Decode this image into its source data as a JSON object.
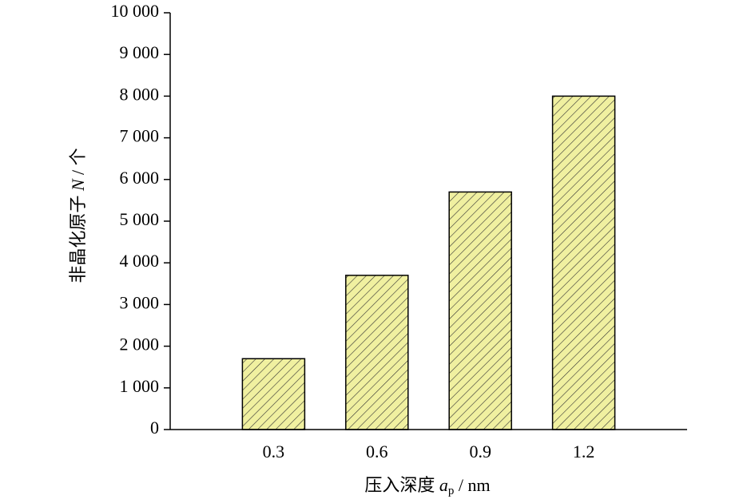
{
  "chart_data": {
    "type": "bar",
    "categories": [
      "0.3",
      "0.6",
      "0.9",
      "1.2"
    ],
    "values": [
      1700,
      3700,
      5700,
      8000
    ],
    "color": "#f0f0a0",
    "ylim": [
      0,
      10000
    ],
    "yticks": [
      0,
      {
        "value": 1000,
        "label": "1 000"
      },
      {
        "value": 2000,
        "label": "2 000"
      },
      {
        "value": 3000,
        "label": "3 000"
      },
      {
        "value": 4000,
        "label": "4 000"
      },
      {
        "value": 5000,
        "label": "5 000"
      },
      {
        "value": 6000,
        "label": "6 000"
      },
      {
        "value": 7000,
        "label": "7 000"
      },
      {
        "value": 8000,
        "label": "8 000"
      },
      {
        "value": 9000,
        "label": "9 000"
      },
      {
        "value": 10000,
        "label": "10 000"
      }
    ],
    "xlabel_parts": [
      "压入深度 ",
      "a",
      "p",
      " / nm"
    ],
    "ylabel_parts": [
      "非晶化原子 ",
      "N",
      " / 个"
    ]
  }
}
